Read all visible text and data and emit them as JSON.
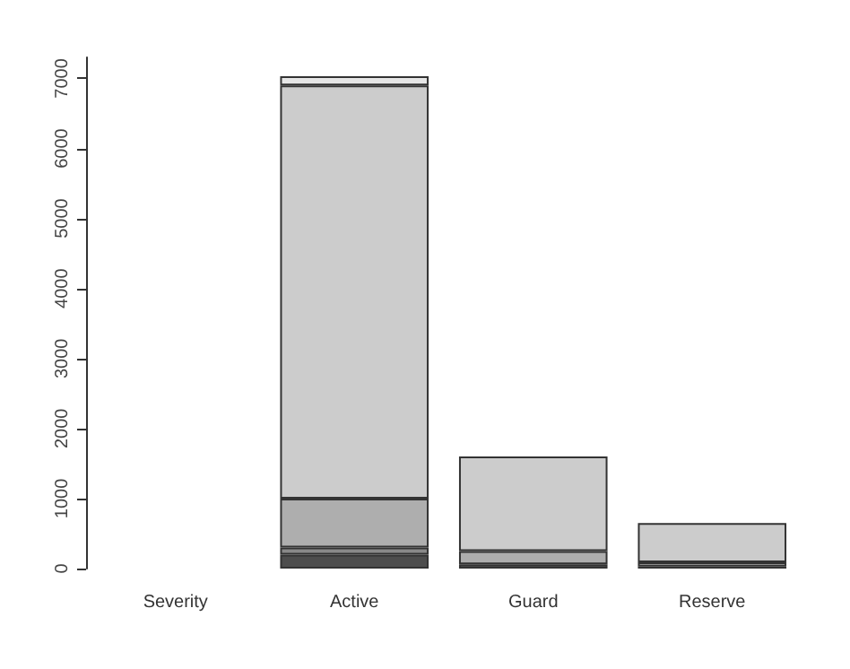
{
  "chart_data": {
    "type": "bar",
    "stacked": true,
    "categories": [
      "Severity",
      "Active",
      "Guard",
      "Reserve"
    ],
    "series": [
      {
        "color": "#4d4d4d",
        "values": [
          null,
          200,
          60,
          30
        ]
      },
      {
        "color": "#888888",
        "values": [
          null,
          100,
          null,
          null
        ]
      },
      {
        "color": "#aeaeae",
        "values": [
          null,
          700,
          190,
          60
        ]
      },
      {
        "color": "#cccccc",
        "values": [
          null,
          5900,
          1350,
          560
        ]
      },
      {
        "color": "#e6e6e6",
        "values": [
          null,
          130,
          null,
          null
        ]
      }
    ],
    "ylim": [
      0,
      7300
    ],
    "yticks": [
      0,
      1000,
      2000,
      3000,
      4000,
      5000,
      6000,
      7000
    ],
    "grid": false
  }
}
